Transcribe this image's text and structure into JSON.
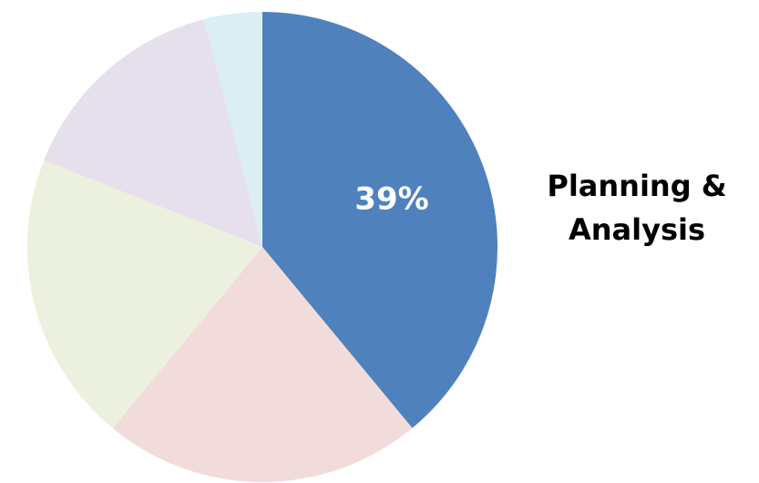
{
  "chart_data": {
    "type": "pie",
    "slices": [
      {
        "label": "Planning & Analysis",
        "percent": 39,
        "color": "#4F81BD"
      },
      {
        "label": "",
        "percent": 22,
        "color": "#F2DCDB"
      },
      {
        "label": "",
        "percent": 20,
        "color": "#EBF1DE"
      },
      {
        "label": "",
        "percent": 15,
        "color": "#E5E0EC"
      },
      {
        "label": "",
        "percent": 4,
        "color": "#DBEEF4"
      }
    ],
    "data_labels": [
      "39%"
    ],
    "highlighted_label_lines": [
      "Planning &",
      "Analysis"
    ],
    "start_angle": "12 o'clock",
    "direction": "clockwise"
  }
}
